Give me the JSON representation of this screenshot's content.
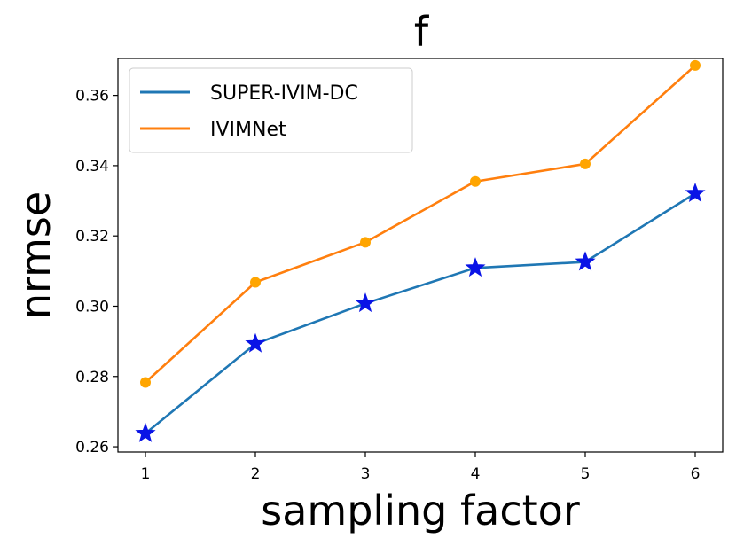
{
  "chart_data": {
    "type": "line",
    "title": "f",
    "xlabel": "sampling factor",
    "ylabel": "nrmse",
    "x": [
      1,
      2,
      3,
      4,
      5,
      6
    ],
    "xticks": [
      "1",
      "2",
      "3",
      "4",
      "5",
      "6"
    ],
    "yticks": [
      "0.26",
      "0.28",
      "0.30",
      "0.32",
      "0.34",
      "0.36"
    ],
    "ytick_values": [
      0.26,
      0.28,
      0.3,
      0.32,
      0.34,
      0.36
    ],
    "xlim": [
      0.75,
      6.25
    ],
    "ylim": [
      0.2585,
      0.3705
    ],
    "legend_position": "upper-left",
    "series": [
      {
        "name": "SUPER-IVIM-DC",
        "values": [
          0.2638,
          0.2893,
          0.3008,
          0.3109,
          0.3126,
          0.3321
        ],
        "line_color": "#1f77b4",
        "marker": "star",
        "marker_color": "#0a14e6"
      },
      {
        "name": "IVIMNet",
        "values": [
          0.2783,
          0.3068,
          0.3182,
          0.3355,
          0.3405,
          0.3685
        ],
        "line_color": "#ff7f0e",
        "marker": "circle",
        "marker_color": "#ffa500"
      }
    ]
  }
}
